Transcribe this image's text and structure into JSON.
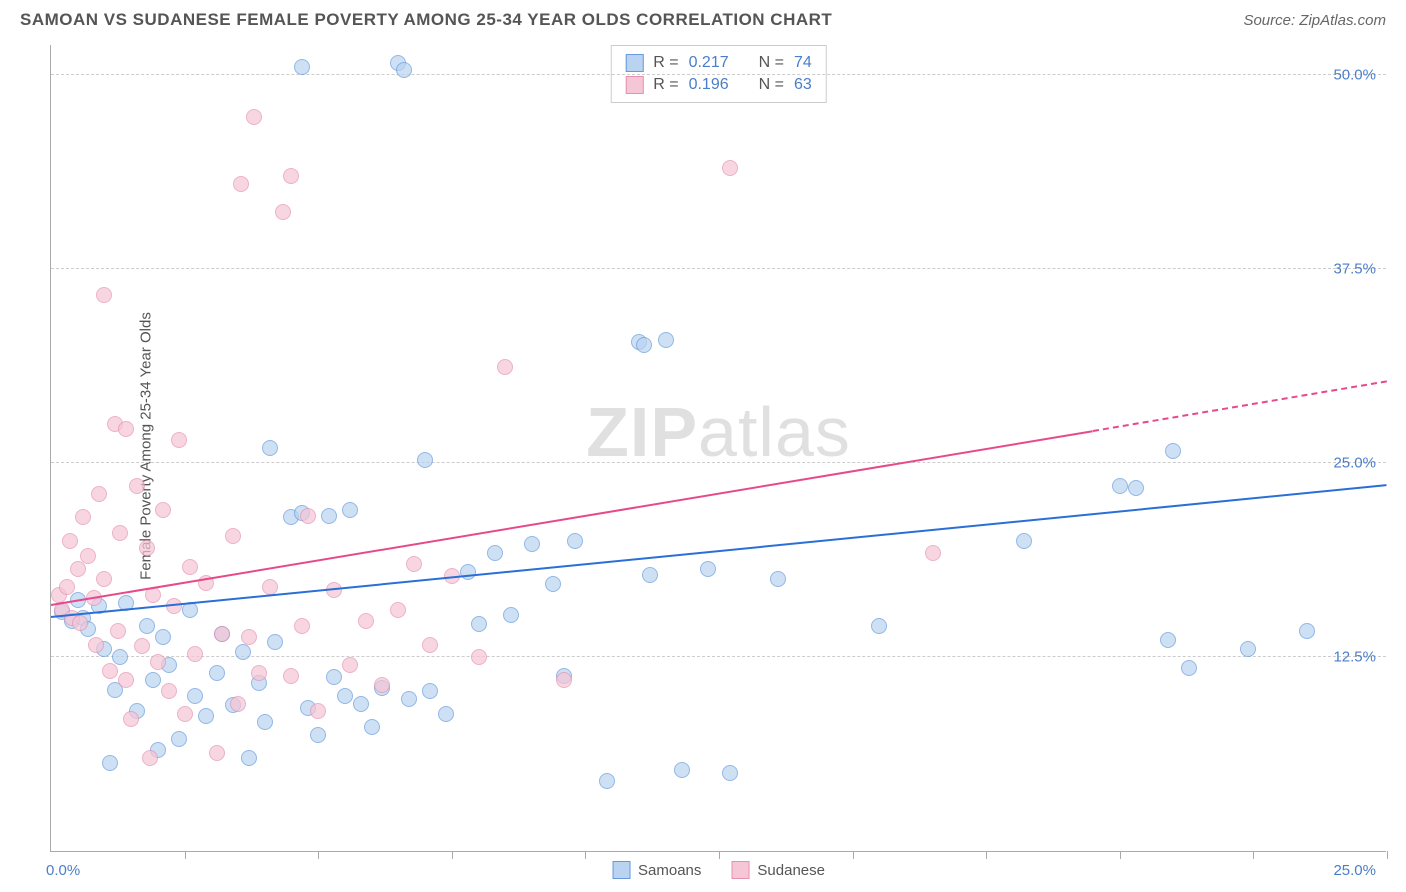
{
  "title": "SAMOAN VS SUDANESE FEMALE POVERTY AMONG 25-34 YEAR OLDS CORRELATION CHART",
  "source": "Source: ZipAtlas.com",
  "y_axis_label": "Female Poverty Among 25-34 Year Olds",
  "watermark_a": "ZIP",
  "watermark_b": "atlas",
  "chart": {
    "type": "scatter",
    "xlim": [
      0,
      25
    ],
    "ylim": [
      0,
      52
    ],
    "x_origin_label": "0.0%",
    "x_max_label": "25.0%",
    "y_ticks": [
      {
        "value": 12.5,
        "label": "12.5%"
      },
      {
        "value": 25.0,
        "label": "25.0%"
      },
      {
        "value": 37.5,
        "label": "37.5%"
      },
      {
        "value": 50.0,
        "label": "50.0%"
      }
    ],
    "x_tick_positions": [
      2.5,
      5,
      7.5,
      10,
      12.5,
      15,
      17.5,
      20,
      22.5,
      25
    ],
    "grid_color": "#cccccc",
    "background_color": "#ffffff",
    "point_radius": 8,
    "series": [
      {
        "name": "Samoans",
        "fill": "#b9d3f0",
        "stroke": "#6699dd",
        "fill_opacity": 0.7,
        "trend": {
          "x1": 0,
          "y1": 15.0,
          "x2": 25,
          "y2": 23.5,
          "color": "#2a6fd6",
          "width": 2
        },
        "points": [
          [
            0.2,
            15.4
          ],
          [
            0.4,
            14.8
          ],
          [
            0.5,
            16.2
          ],
          [
            0.6,
            15.0
          ],
          [
            0.7,
            14.3
          ],
          [
            0.9,
            15.8
          ],
          [
            1.0,
            13.0
          ],
          [
            1.1,
            5.7
          ],
          [
            1.2,
            10.4
          ],
          [
            1.3,
            12.5
          ],
          [
            1.4,
            16.0
          ],
          [
            1.6,
            9.0
          ],
          [
            1.8,
            14.5
          ],
          [
            1.9,
            11.0
          ],
          [
            2.0,
            6.5
          ],
          [
            2.1,
            13.8
          ],
          [
            2.2,
            12.0
          ],
          [
            2.4,
            7.2
          ],
          [
            2.6,
            15.5
          ],
          [
            2.7,
            10.0
          ],
          [
            2.9,
            8.7
          ],
          [
            3.1,
            11.5
          ],
          [
            3.2,
            14.0
          ],
          [
            3.4,
            9.4
          ],
          [
            3.6,
            12.8
          ],
          [
            3.7,
            6.0
          ],
          [
            3.9,
            10.8
          ],
          [
            4.0,
            8.3
          ],
          [
            4.1,
            26.0
          ],
          [
            4.2,
            13.5
          ],
          [
            4.5,
            21.5
          ],
          [
            4.7,
            21.8
          ],
          [
            4.7,
            50.5
          ],
          [
            4.8,
            9.2
          ],
          [
            5.0,
            7.5
          ],
          [
            5.2,
            21.6
          ],
          [
            5.3,
            11.2
          ],
          [
            5.5,
            10.0
          ],
          [
            5.6,
            22.0
          ],
          [
            5.8,
            9.5
          ],
          [
            6.0,
            8.0
          ],
          [
            6.2,
            10.5
          ],
          [
            6.5,
            50.8
          ],
          [
            6.6,
            50.3
          ],
          [
            6.7,
            9.8
          ],
          [
            7.0,
            25.2
          ],
          [
            7.1,
            10.3
          ],
          [
            7.4,
            8.8
          ],
          [
            7.8,
            18.0
          ],
          [
            8.0,
            14.6
          ],
          [
            8.3,
            19.2
          ],
          [
            8.6,
            15.2
          ],
          [
            9.0,
            19.8
          ],
          [
            9.4,
            17.2
          ],
          [
            9.6,
            11.3
          ],
          [
            9.8,
            20.0
          ],
          [
            10.4,
            4.5
          ],
          [
            11.0,
            32.8
          ],
          [
            11.1,
            32.6
          ],
          [
            11.2,
            17.8
          ],
          [
            11.5,
            32.9
          ],
          [
            11.8,
            5.2
          ],
          [
            12.3,
            18.2
          ],
          [
            12.7,
            5.0
          ],
          [
            13.6,
            17.5
          ],
          [
            15.5,
            14.5
          ],
          [
            18.2,
            20.0
          ],
          [
            20.0,
            23.5
          ],
          [
            20.3,
            23.4
          ],
          [
            20.9,
            13.6
          ],
          [
            21.0,
            25.8
          ],
          [
            21.3,
            11.8
          ],
          [
            22.4,
            13.0
          ],
          [
            23.5,
            14.2
          ]
        ]
      },
      {
        "name": "Sudanese",
        "fill": "#f5c6d6",
        "stroke": "#e691b0",
        "fill_opacity": 0.7,
        "trend": {
          "x1": 0,
          "y1": 15.8,
          "x2": 19.5,
          "y2": 27.0,
          "color": "#e64a8a",
          "width": 2,
          "dash_x1": 19.5,
          "dash_y1": 27.0,
          "dash_x2": 25,
          "dash_y2": 30.2
        },
        "points": [
          [
            0.15,
            16.5
          ],
          [
            0.2,
            15.5
          ],
          [
            0.3,
            17.0
          ],
          [
            0.35,
            20.0
          ],
          [
            0.4,
            15.0
          ],
          [
            0.5,
            18.2
          ],
          [
            0.55,
            14.7
          ],
          [
            0.6,
            21.5
          ],
          [
            0.7,
            19.0
          ],
          [
            0.8,
            16.3
          ],
          [
            0.85,
            13.3
          ],
          [
            0.9,
            23.0
          ],
          [
            1.0,
            35.8
          ],
          [
            1.0,
            17.5
          ],
          [
            1.1,
            11.6
          ],
          [
            1.2,
            27.5
          ],
          [
            1.25,
            14.2
          ],
          [
            1.3,
            20.5
          ],
          [
            1.4,
            27.2
          ],
          [
            1.4,
            11.0
          ],
          [
            1.5,
            8.5
          ],
          [
            1.6,
            23.5
          ],
          [
            1.7,
            13.2
          ],
          [
            1.8,
            19.5
          ],
          [
            1.85,
            6.0
          ],
          [
            1.9,
            16.5
          ],
          [
            2.0,
            12.2
          ],
          [
            2.1,
            22.0
          ],
          [
            2.2,
            10.3
          ],
          [
            2.3,
            15.8
          ],
          [
            2.4,
            26.5
          ],
          [
            2.5,
            8.8
          ],
          [
            2.6,
            18.3
          ],
          [
            2.7,
            12.7
          ],
          [
            2.9,
            17.3
          ],
          [
            3.1,
            6.3
          ],
          [
            3.2,
            14.0
          ],
          [
            3.4,
            20.3
          ],
          [
            3.5,
            9.5
          ],
          [
            3.55,
            43.0
          ],
          [
            3.7,
            13.8
          ],
          [
            3.8,
            47.3
          ],
          [
            3.9,
            11.5
          ],
          [
            4.1,
            17.0
          ],
          [
            4.35,
            41.2
          ],
          [
            4.5,
            43.5
          ],
          [
            4.5,
            11.3
          ],
          [
            4.7,
            14.5
          ],
          [
            4.8,
            21.6
          ],
          [
            5.0,
            9.0
          ],
          [
            5.3,
            16.8
          ],
          [
            5.6,
            12.0
          ],
          [
            5.9,
            14.8
          ],
          [
            6.2,
            10.7
          ],
          [
            6.5,
            15.5
          ],
          [
            6.8,
            18.5
          ],
          [
            7.1,
            13.3
          ],
          [
            7.5,
            17.7
          ],
          [
            8.0,
            12.5
          ],
          [
            8.5,
            31.2
          ],
          [
            9.6,
            11.0
          ],
          [
            12.7,
            44.0
          ],
          [
            16.5,
            19.2
          ]
        ]
      }
    ],
    "stats": [
      {
        "swatch_fill": "#b9d3f0",
        "swatch_stroke": "#6699dd",
        "r_label": "R =",
        "r": "0.217",
        "n_label": "N =",
        "n": "74"
      },
      {
        "swatch_fill": "#f5c6d6",
        "swatch_stroke": "#e691b0",
        "r_label": "R =",
        "r": "0.196",
        "n_label": "N =",
        "n": "63"
      }
    ],
    "legend": [
      {
        "swatch_fill": "#b9d3f0",
        "swatch_stroke": "#6699dd",
        "label": "Samoans"
      },
      {
        "swatch_fill": "#f5c6d6",
        "swatch_stroke": "#e691b0",
        "label": "Sudanese"
      }
    ]
  }
}
